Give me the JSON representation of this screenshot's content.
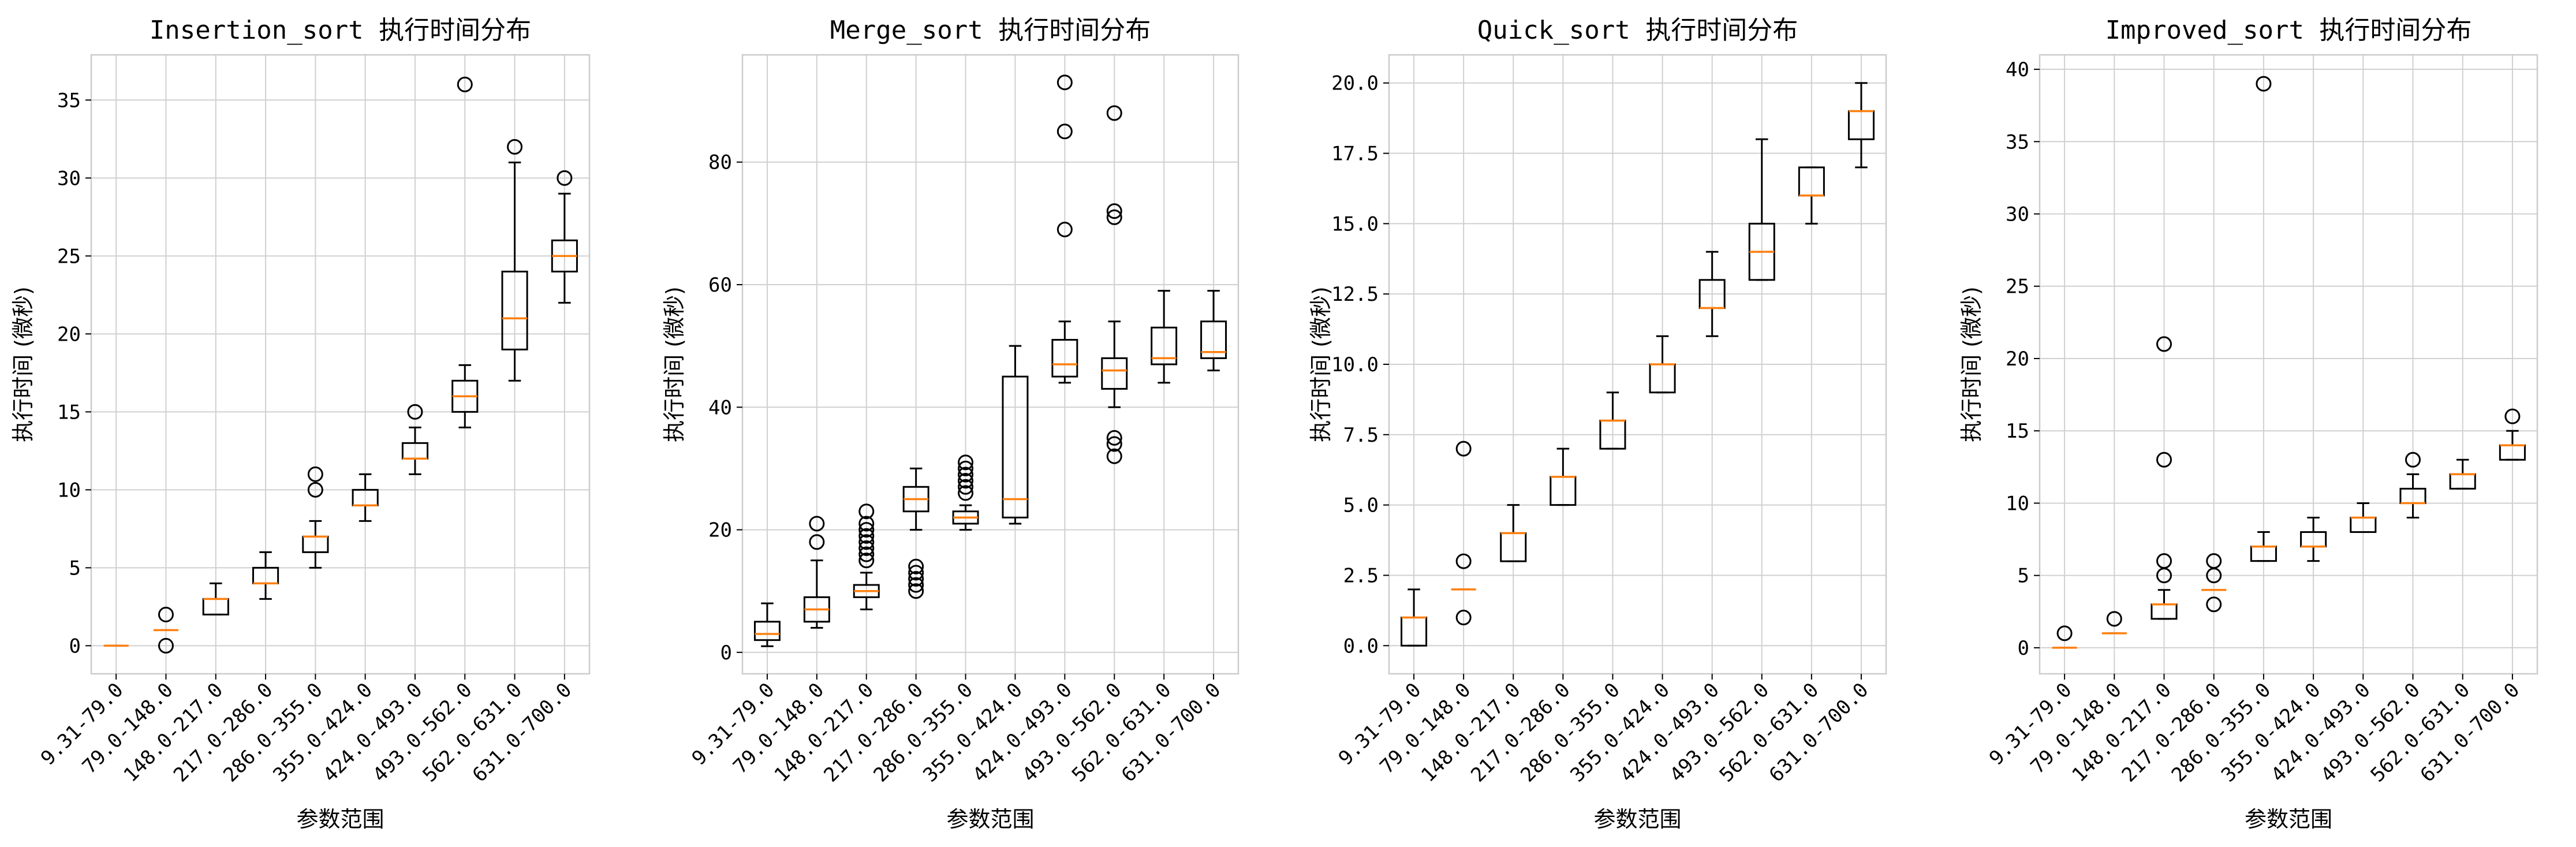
{
  "chart_data": [
    {
      "type": "boxplot",
      "title": "Insertion_sort 执行时间分布",
      "xlabel": "参数范围",
      "ylabel": "执行时间 (微秒)",
      "categories": [
        "9.31-79.0",
        "79.0-148.0",
        "148.0-217.0",
        "217.0-286.0",
        "286.0-355.0",
        "355.0-424.0",
        "424.0-493.0",
        "493.0-562.0",
        "562.0-631.0",
        "631.0-700.0"
      ],
      "ylim": [
        -1.8,
        37.9
      ],
      "yticks": [
        0,
        5,
        10,
        15,
        20,
        25,
        30,
        35
      ],
      "ytick_labels": [
        "0",
        "5",
        "10",
        "15",
        "20",
        "25",
        "30",
        "35"
      ],
      "grid": true,
      "boxes": [
        {
          "whislo": 0,
          "q1": 0,
          "med": 0,
          "q3": 0,
          "whishi": 0,
          "fliers": []
        },
        {
          "whislo": 1,
          "q1": 1,
          "med": 1,
          "q3": 1,
          "whishi": 1,
          "fliers": [
            0,
            2
          ]
        },
        {
          "whislo": 2,
          "q1": 2,
          "med": 3,
          "q3": 3,
          "whishi": 4,
          "fliers": []
        },
        {
          "whislo": 3,
          "q1": 4,
          "med": 4,
          "q3": 5,
          "whishi": 6,
          "fliers": []
        },
        {
          "whislo": 5,
          "q1": 6,
          "med": 7,
          "q3": 7,
          "whishi": 8,
          "fliers": [
            10,
            11
          ]
        },
        {
          "whislo": 8,
          "q1": 9,
          "med": 9,
          "q3": 10,
          "whishi": 11,
          "fliers": []
        },
        {
          "whislo": 11,
          "q1": 12,
          "med": 12,
          "q3": 13,
          "whishi": 14,
          "fliers": [
            15
          ]
        },
        {
          "whislo": 14,
          "q1": 15,
          "med": 16,
          "q3": 17,
          "whishi": 18,
          "fliers": [
            36
          ]
        },
        {
          "whislo": 17,
          "q1": 19,
          "med": 21,
          "q3": 24,
          "whishi": 31,
          "fliers": [
            32
          ]
        },
        {
          "whislo": 22,
          "q1": 24,
          "med": 25,
          "q3": 26,
          "whishi": 29,
          "fliers": [
            30
          ]
        }
      ]
    },
    {
      "type": "boxplot",
      "title": "Merge_sort 执行时间分布",
      "xlabel": "参数范围",
      "ylabel": "执行时间 (微秒)",
      "categories": [
        "9.31-79.0",
        "79.0-148.0",
        "148.0-217.0",
        "217.0-286.0",
        "286.0-355.0",
        "355.0-424.0",
        "424.0-493.0",
        "493.0-562.0",
        "562.0-631.0",
        "631.0-700.0"
      ],
      "ylim": [
        -3.5,
        97.5
      ],
      "yticks": [
        0,
        20,
        40,
        60,
        80
      ],
      "ytick_labels": [
        "0",
        "20",
        "40",
        "60",
        "80"
      ],
      "grid": true,
      "boxes": [
        {
          "whislo": 1,
          "q1": 2,
          "med": 3,
          "q3": 5,
          "whishi": 8,
          "fliers": []
        },
        {
          "whislo": 4,
          "q1": 5,
          "med": 7,
          "q3": 9,
          "whishi": 15,
          "fliers": [
            18,
            21
          ]
        },
        {
          "whislo": 7,
          "q1": 9,
          "med": 10,
          "q3": 11,
          "whishi": 13,
          "fliers": [
            15,
            16,
            17,
            18,
            19,
            20,
            21,
            23
          ]
        },
        {
          "whislo": 20,
          "q1": 23,
          "med": 25,
          "q3": 27,
          "whishi": 30,
          "fliers": [
            10,
            11,
            12,
            13,
            14
          ]
        },
        {
          "whislo": 20,
          "q1": 21,
          "med": 22,
          "q3": 23,
          "whishi": 24,
          "fliers": [
            26,
            27,
            28,
            29,
            30,
            31
          ]
        },
        {
          "whislo": 21,
          "q1": 22,
          "med": 25,
          "q3": 45,
          "whishi": 50,
          "fliers": []
        },
        {
          "whislo": 44,
          "q1": 45,
          "med": 47,
          "q3": 51,
          "whishi": 54,
          "fliers": [
            69,
            85,
            93
          ]
        },
        {
          "whislo": 40,
          "q1": 43,
          "med": 46,
          "q3": 48,
          "whishi": 54,
          "fliers": [
            32,
            34,
            35,
            71,
            72,
            88
          ]
        },
        {
          "whislo": 44,
          "q1": 47,
          "med": 48,
          "q3": 53,
          "whishi": 59,
          "fliers": []
        },
        {
          "whislo": 46,
          "q1": 48,
          "med": 49,
          "q3": 54,
          "whishi": 59,
          "fliers": []
        }
      ]
    },
    {
      "type": "boxplot",
      "title": "Quick_sort 执行时间分布",
      "xlabel": "参数范围",
      "ylabel": "执行时间 (微秒)",
      "categories": [
        "9.31-79.0",
        "79.0-148.0",
        "148.0-217.0",
        "217.0-286.0",
        "286.0-355.0",
        "355.0-424.0",
        "424.0-493.0",
        "493.0-562.0",
        "562.0-631.0",
        "631.0-700.0"
      ],
      "ylim": [
        -1.0,
        21.0
      ],
      "yticks": [
        0,
        2.5,
        5,
        7.5,
        10,
        12.5,
        15,
        17.5,
        20
      ],
      "ytick_labels": [
        "0.0",
        "2.5",
        "5.0",
        "7.5",
        "10.0",
        "12.5",
        "15.0",
        "17.5",
        "20.0"
      ],
      "grid": true,
      "boxes": [
        {
          "whislo": 0,
          "q1": 0,
          "med": 1,
          "q3": 1,
          "whishi": 2,
          "fliers": []
        },
        {
          "whislo": 2,
          "q1": 2,
          "med": 2,
          "q3": 2,
          "whishi": 2,
          "fliers": [
            1,
            3,
            7
          ]
        },
        {
          "whislo": 3,
          "q1": 3,
          "med": 4,
          "q3": 4,
          "whishi": 5,
          "fliers": []
        },
        {
          "whislo": 5,
          "q1": 5,
          "med": 6,
          "q3": 6,
          "whishi": 7,
          "fliers": []
        },
        {
          "whislo": 7,
          "q1": 7,
          "med": 8,
          "q3": 8,
          "whishi": 9,
          "fliers": []
        },
        {
          "whislo": 9,
          "q1": 9,
          "med": 10,
          "q3": 10,
          "whishi": 11,
          "fliers": []
        },
        {
          "whislo": 11,
          "q1": 12,
          "med": 12,
          "q3": 13,
          "whishi": 14,
          "fliers": []
        },
        {
          "whislo": 13,
          "q1": 13,
          "med": 14,
          "q3": 15,
          "whishi": 18,
          "fliers": []
        },
        {
          "whislo": 15,
          "q1": 16,
          "med": 16,
          "q3": 17,
          "whishi": 17,
          "fliers": []
        },
        {
          "whislo": 17,
          "q1": 18,
          "med": 19,
          "q3": 19,
          "whishi": 20,
          "fliers": []
        }
      ]
    },
    {
      "type": "boxplot",
      "title": "Improved_sort 执行时间分布",
      "xlabel": "参数范围",
      "ylabel": "执行时间 (微秒)",
      "categories": [
        "9.31-79.0",
        "79.0-148.0",
        "148.0-217.0",
        "217.0-286.0",
        "286.0-355.0",
        "355.0-424.0",
        "424.0-493.0",
        "493.0-562.0",
        "562.0-631.0",
        "631.0-700.0"
      ],
      "ylim": [
        -1.8,
        41.0
      ],
      "yticks": [
        0,
        5,
        10,
        15,
        20,
        25,
        30,
        35,
        40
      ],
      "ytick_labels": [
        "0",
        "5",
        "10",
        "15",
        "20",
        "25",
        "30",
        "35",
        "40"
      ],
      "grid": true,
      "boxes": [
        {
          "whislo": 0,
          "q1": 0,
          "med": 0,
          "q3": 0,
          "whishi": 0,
          "fliers": [
            1
          ]
        },
        {
          "whislo": 1,
          "q1": 1,
          "med": 1,
          "q3": 1,
          "whishi": 1,
          "fliers": [
            2
          ]
        },
        {
          "whislo": 2,
          "q1": 2,
          "med": 3,
          "q3": 3,
          "whishi": 4,
          "fliers": [
            5,
            6,
            13,
            21
          ]
        },
        {
          "whislo": 4,
          "q1": 4,
          "med": 4,
          "q3": 4,
          "whishi": 4,
          "fliers": [
            3,
            5,
            6
          ]
        },
        {
          "whislo": 6,
          "q1": 6,
          "med": 7,
          "q3": 7,
          "whishi": 8,
          "fliers": [
            39
          ]
        },
        {
          "whislo": 6,
          "q1": 7,
          "med": 7,
          "q3": 8,
          "whishi": 9,
          "fliers": []
        },
        {
          "whislo": 8,
          "q1": 8,
          "med": 9,
          "q3": 9,
          "whishi": 10,
          "fliers": []
        },
        {
          "whislo": 9,
          "q1": 10,
          "med": 10,
          "q3": 11,
          "whishi": 12,
          "fliers": [
            13
          ]
        },
        {
          "whislo": 11,
          "q1": 11,
          "med": 12,
          "q3": 12,
          "whishi": 13,
          "fliers": []
        },
        {
          "whislo": 13,
          "q1": 13,
          "med": 14,
          "q3": 14,
          "whishi": 15,
          "fliers": [
            16
          ]
        }
      ]
    }
  ],
  "colors": {
    "median": "#ff7f0e",
    "box": "#000000",
    "grid": "#d0d0d0",
    "spine": "#cccccc"
  }
}
